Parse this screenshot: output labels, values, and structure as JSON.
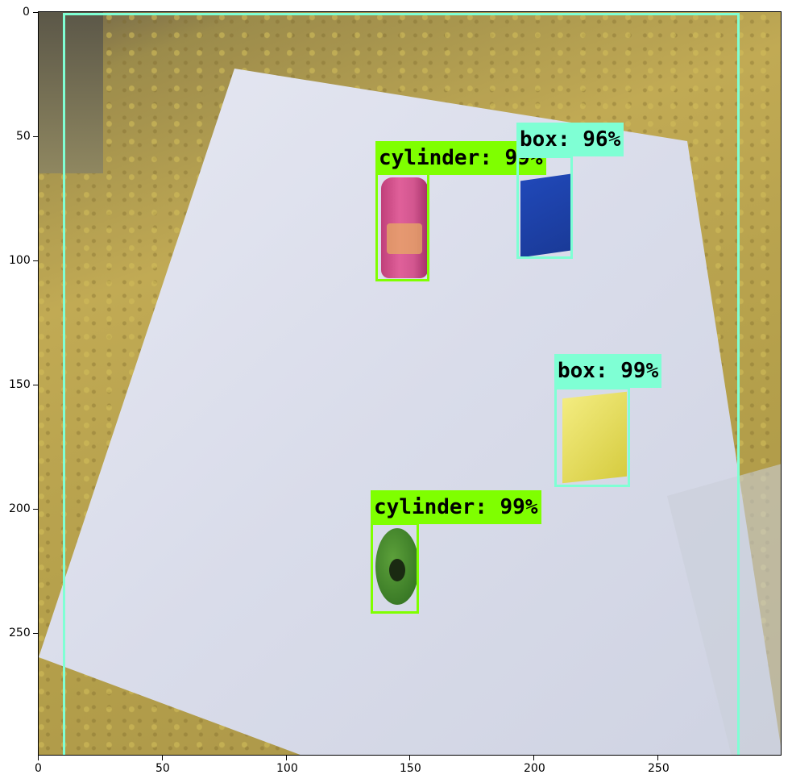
{
  "axes": {
    "x_ticks": [
      "0",
      "50",
      "100",
      "150",
      "200",
      "250"
    ],
    "y_ticks": [
      "0",
      "50",
      "100",
      "150",
      "200",
      "250"
    ]
  },
  "detections": [
    {
      "label": "cylinder:  99%",
      "class": "cylinder",
      "score": 0.99,
      "color": "#7fff00"
    },
    {
      "label": "box:  96%",
      "class": "box",
      "score": 0.96,
      "color": "#7fffd4"
    },
    {
      "label": "box:  99%",
      "class": "box",
      "score": 0.99,
      "color": "#7fffd4"
    },
    {
      "label": "cylinder:  99%",
      "class": "cylinder",
      "score": 0.99,
      "color": "#7fff00"
    }
  ],
  "colors": {
    "frame_box": "#7fffd4",
    "floor": "#b8a24a",
    "paper": "#d8dcea"
  }
}
